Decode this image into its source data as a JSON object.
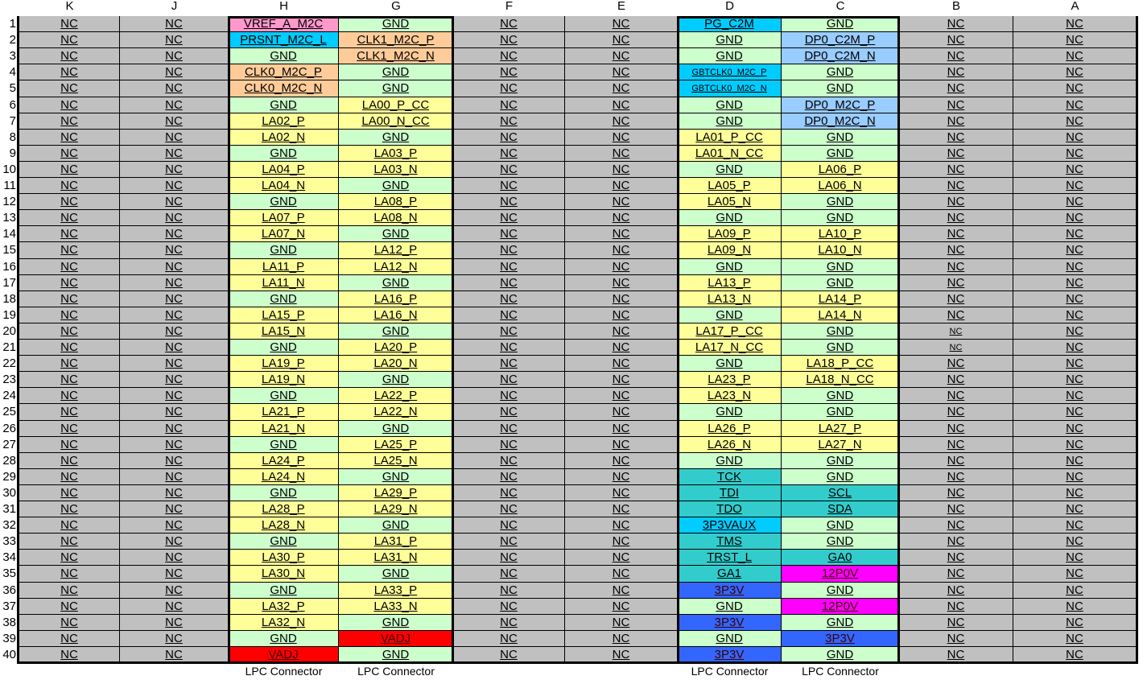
{
  "colors": {
    "NC": "#c0c0c0",
    "GND": "#ccffcc",
    "SIG": "#ffff99",
    "CLK": "#ffcc99",
    "VREF": "#ff99cc",
    "PRSNT": "#00ccff",
    "DP": "#99ccff",
    "JTAG": "#33cccc",
    "P12": "#ff00ff",
    "P3V3": "#3366ff",
    "VADJ": "#ff0000"
  },
  "column_headers": [
    "K",
    "J",
    "H",
    "G",
    "F",
    "E",
    "D",
    "C",
    "B",
    "A"
  ],
  "row_numbers": [
    "1",
    "2",
    "3",
    "4",
    "5",
    "6",
    "7",
    "8",
    "9",
    "10",
    "11",
    "12",
    "13",
    "14",
    "15",
    "16",
    "17",
    "18",
    "19",
    "20",
    "21",
    "22",
    "23",
    "24",
    "25",
    "26",
    "27",
    "28",
    "29",
    "30",
    "31",
    "32",
    "33",
    "34",
    "35",
    "36",
    "37",
    "38",
    "39",
    "40"
  ],
  "columns": {
    "H": [
      "VREF_A_M2C",
      "PRSNT_M2C_L",
      "GND",
      "CLK0_M2C_P",
      "CLK0_M2C_N",
      "GND",
      "LA02_P",
      "LA02_N",
      "GND",
      "LA04_P",
      "LA04_N",
      "GND",
      "LA07_P",
      "LA07_N",
      "GND",
      "LA11_P",
      "LA11_N",
      "GND",
      "LA15_P",
      "LA15_N",
      "GND",
      "LA19_P",
      "LA19_N",
      "GND",
      "LA21_P",
      "LA21_N",
      "GND",
      "LA24_P",
      "LA24_N",
      "GND",
      "LA28_P",
      "LA28_N",
      "GND",
      "LA30_P",
      "LA30_N",
      "GND",
      "LA32_P",
      "LA32_N",
      "GND",
      "VADJ"
    ],
    "G": [
      "GND",
      "CLK1_M2C_P",
      "CLK1_M2C_N",
      "GND",
      "GND",
      "LA00_P_CC",
      "LA00_N_CC",
      "GND",
      "LA03_P",
      "LA03_N",
      "GND",
      "LA08_P",
      "LA08_N",
      "GND",
      "LA12_P",
      "LA12_N",
      "GND",
      "LA16_P",
      "LA16_N",
      "GND",
      "LA20_P",
      "LA20_N",
      "GND",
      "LA22_P",
      "LA22_N",
      "GND",
      "LA25_P",
      "LA25_N",
      "GND",
      "LA29_P",
      "LA29_N",
      "GND",
      "LA31_P",
      "LA31_N",
      "GND",
      "LA33_P",
      "LA33_N",
      "GND",
      "VADJ",
      "GND"
    ],
    "D": [
      "PG_C2M",
      "GND",
      "GND",
      "GBTCLK0_M2C_P",
      "GBTCLK0_M2C_N",
      "GND",
      "GND",
      "LA01_P_CC",
      "LA01_N_CC",
      "GND",
      "LA05_P",
      "LA05_N",
      "GND",
      "LA09_P",
      "LA09_N",
      "GND",
      "LA13_P",
      "LA13_N",
      "GND",
      "LA17_P_CC",
      "LA17_N_CC",
      "GND",
      "LA23_P",
      "LA23_N",
      "GND",
      "LA26_P",
      "LA26_N",
      "GND",
      "TCK",
      "TDI",
      "TDO",
      "3P3VAUX",
      "TMS",
      "TRST_L",
      "GA1",
      "3P3V",
      "GND",
      "3P3V",
      "GND",
      "3P3V"
    ],
    "C": [
      "GND",
      "DP0_C2M_P",
      "DP0_C2M_N",
      "GND",
      "GND",
      "DP0_M2C_P",
      "DP0_M2C_N",
      "GND",
      "GND",
      "LA06_P",
      "LA06_N",
      "GND",
      "GND",
      "LA10_P",
      "LA10_N",
      "GND",
      "GND",
      "LA14_P",
      "LA14_N",
      "GND",
      "GND",
      "LA18_P_CC",
      "LA18_N_CC",
      "GND",
      "GND",
      "LA27_P",
      "LA27_N",
      "GND",
      "GND",
      "SCL",
      "SDA",
      "GND",
      "GND",
      "GA0",
      "12P0V",
      "GND",
      "12P0V",
      "GND",
      "3P3V",
      "GND"
    ]
  },
  "nc_label": "NC",
  "footer": {
    "h": "LPC Connector",
    "g": "LPC Connector",
    "d": "LPC Connector",
    "c": "LPC Connector"
  }
}
